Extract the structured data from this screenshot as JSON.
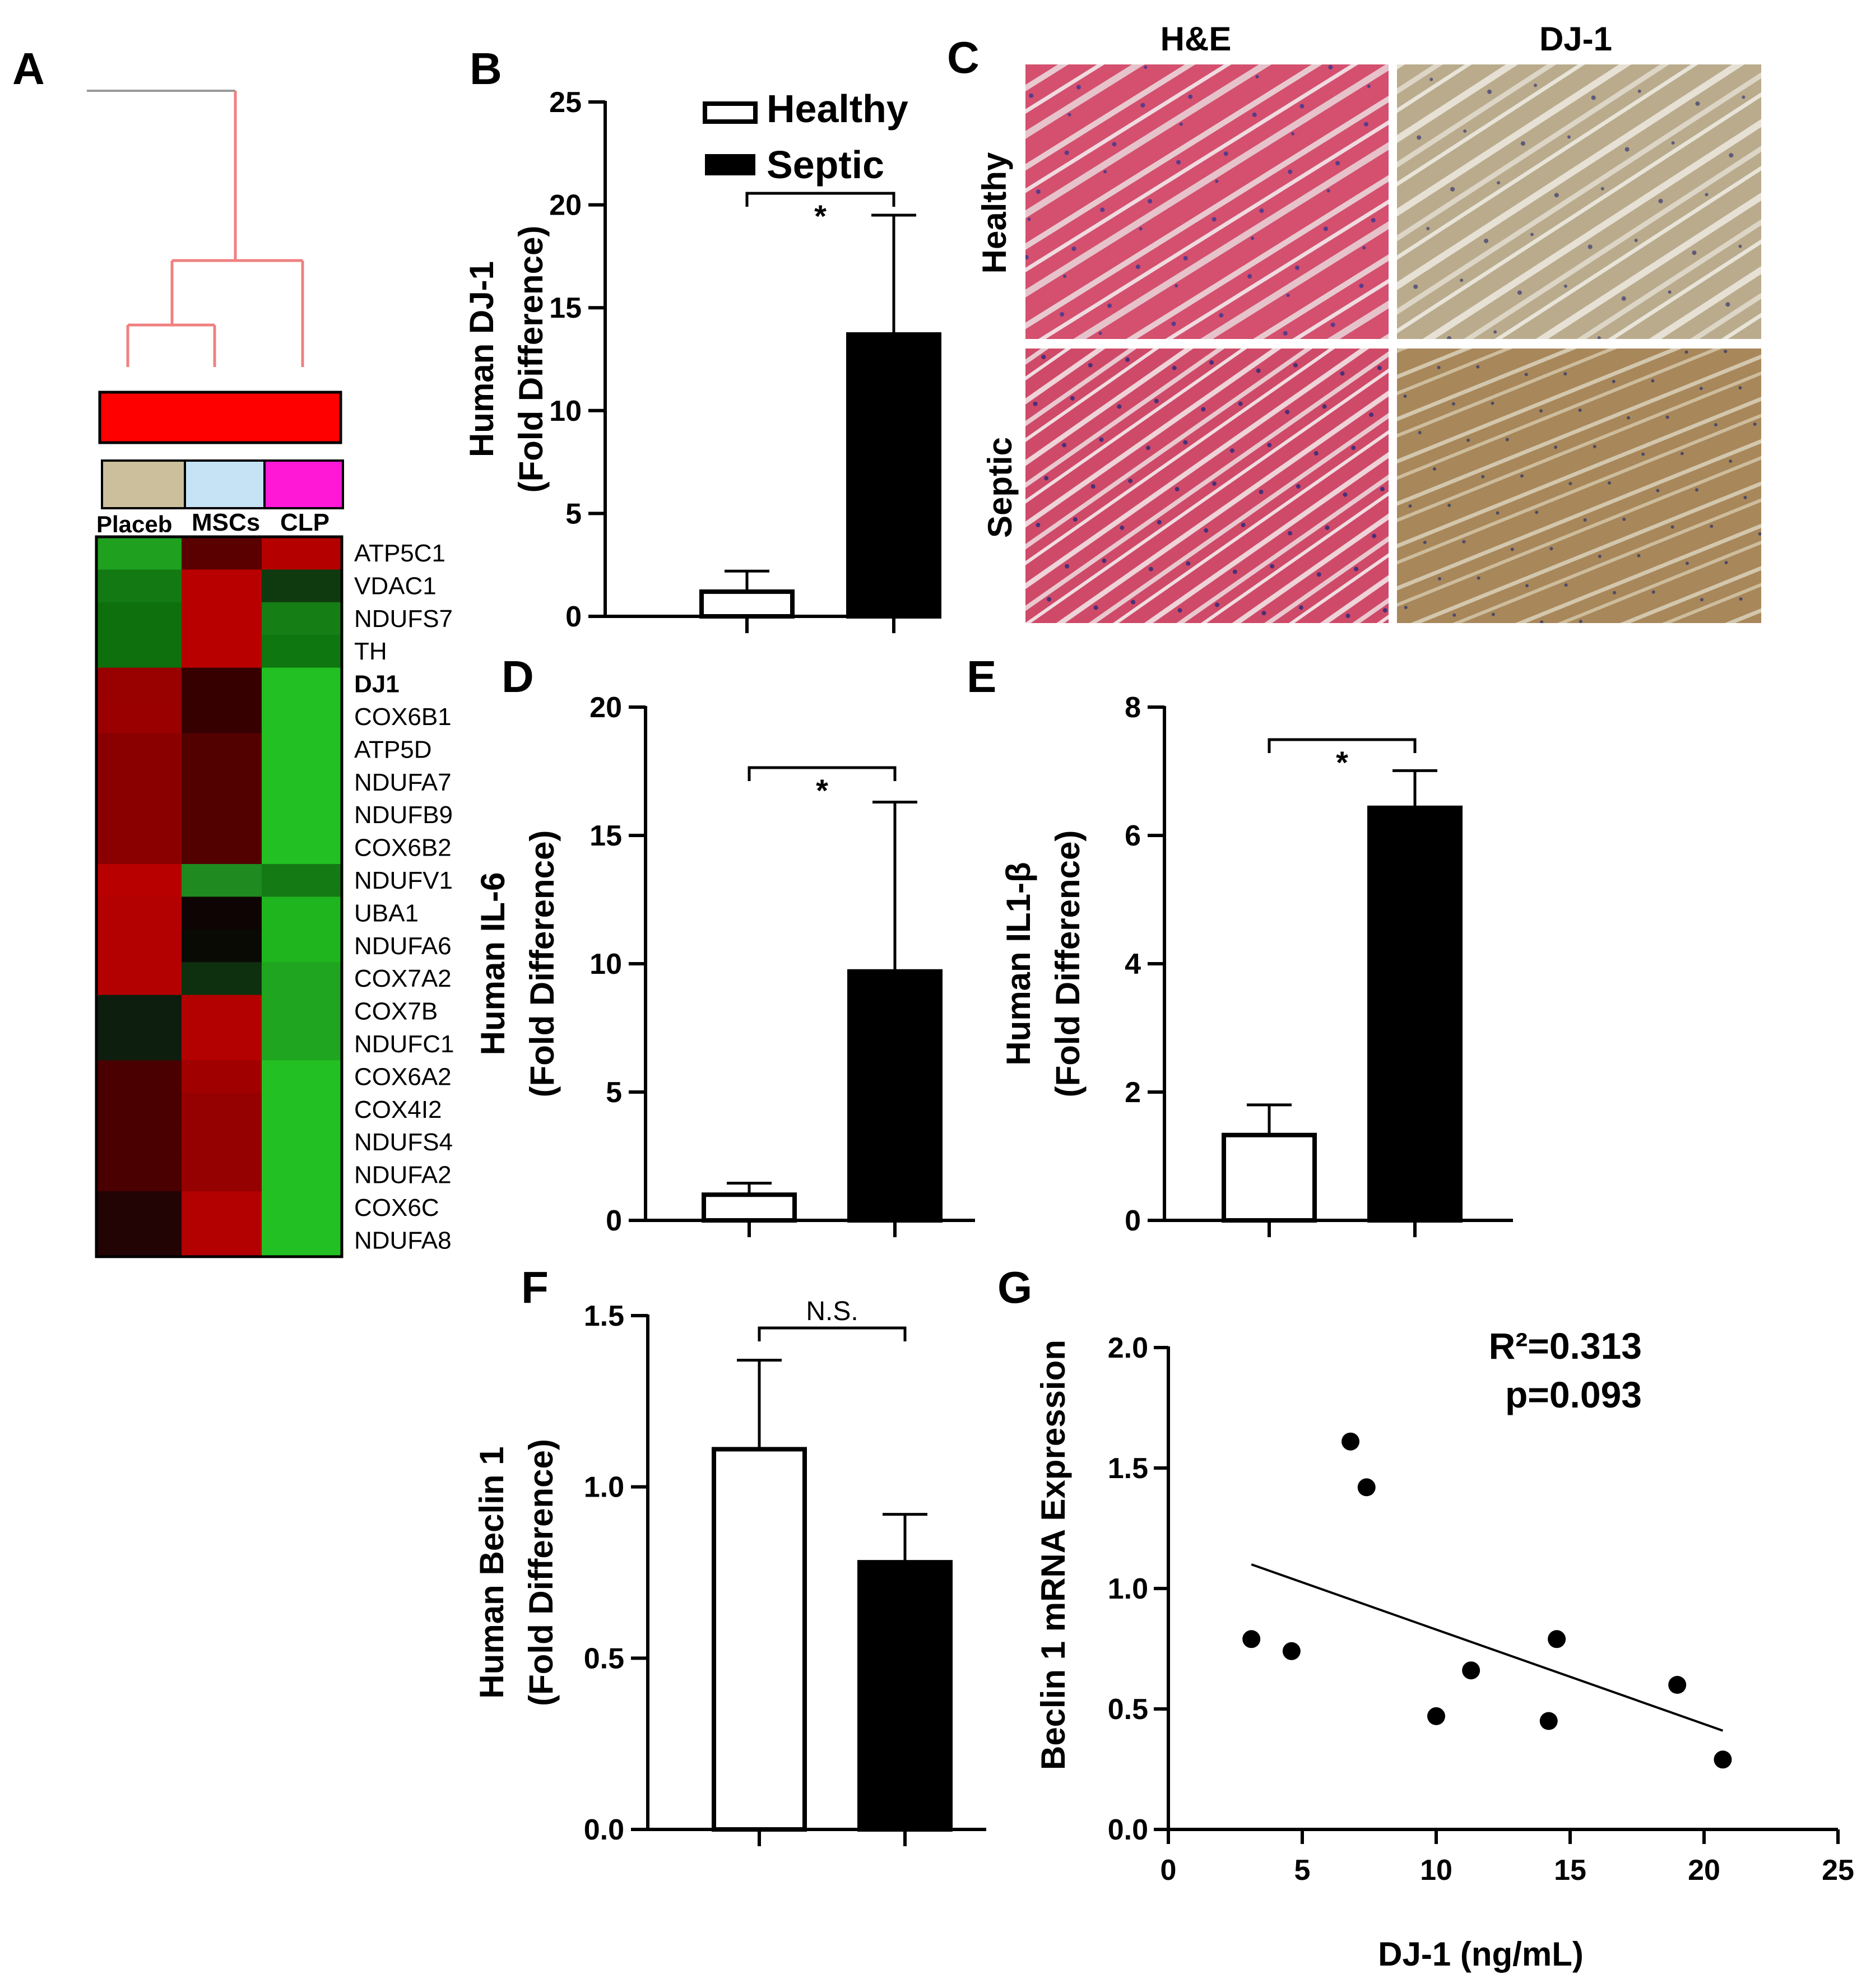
{
  "panel_labels": {
    "A": "A",
    "B": "B",
    "C": "C",
    "D": "D",
    "E": "E",
    "F": "F",
    "G": "G"
  },
  "legend": {
    "healthy": "Healthy",
    "septic": "Septic"
  },
  "colors": {
    "healthy": "#ffffff",
    "septic": "#000000",
    "dendrogram": "#f08080",
    "cluster_bar": "#ff0000",
    "placebo": "#cbbf9c",
    "mscs": "#c5e3f5",
    "clp": "#ff19d7"
  },
  "heatmap": {
    "columns": [
      "Placeb",
      "MSCs",
      "CLP"
    ],
    "genes": [
      "ATP5C1",
      "VDAC1",
      "NDUFS7",
      "TH",
      "DJ1",
      "COX6B1",
      "ATP5D",
      "NDUFA7",
      "NDUFB9",
      "COX6B2",
      "NDUFV1",
      "UBA1",
      "NDUFA6",
      "COX7A2",
      "COX7B",
      "NDUFC1",
      "COX6A2",
      "COX4I2",
      "NDUFS4",
      "NDUFA2",
      "COX6C",
      "NDUFA8"
    ],
    "bold_gene": "DJ1",
    "cells": [
      [
        "#1fa11f",
        "#5a0000",
        "#b50000"
      ],
      [
        "#137a13",
        "#b80000",
        "#0f3a0f"
      ],
      [
        "#0d700d",
        "#b80000",
        "#157f15"
      ],
      [
        "#0d700d",
        "#b80000",
        "#0f770f"
      ],
      [
        "#990000",
        "#360000",
        "#23c023"
      ],
      [
        "#9a0000",
        "#360000",
        "#23c023"
      ],
      [
        "#8a0000",
        "#520000",
        "#23c023"
      ],
      [
        "#8a0000",
        "#520000",
        "#23c023"
      ],
      [
        "#8a0000",
        "#520000",
        "#23c023"
      ],
      [
        "#8a0000",
        "#520000",
        "#23c023"
      ],
      [
        "#b80000",
        "#1f8a1f",
        "#147a14"
      ],
      [
        "#b30000",
        "#0f0404",
        "#1fb51f"
      ],
      [
        "#b30000",
        "#0a0a04",
        "#1fb51f"
      ],
      [
        "#b30000",
        "#0f300f",
        "#1fa51f"
      ],
      [
        "#0e1e0e",
        "#b30000",
        "#1fa51f"
      ],
      [
        "#0e1e0e",
        "#b30000",
        "#1fa51f"
      ],
      [
        "#4a0000",
        "#a00000",
        "#23c023"
      ],
      [
        "#4a0000",
        "#950000",
        "#23c023"
      ],
      [
        "#4a0000",
        "#950000",
        "#23c023"
      ],
      [
        "#4a0000",
        "#950000",
        "#23c023"
      ],
      [
        "#230404",
        "#b30000",
        "#23c023"
      ],
      [
        "#230404",
        "#b30000",
        "#23c023"
      ]
    ]
  },
  "histology": {
    "columns": [
      "H&E",
      "DJ-1"
    ],
    "rows": [
      "Healthy",
      "Septic"
    ]
  },
  "chart_data": [
    {
      "panel": "B",
      "type": "bar",
      "ylabel_line1": "Human DJ-1",
      "ylabel_line2": "(Fold Difference)",
      "ylim": [
        0,
        25
      ],
      "yticks": [
        0,
        5,
        10,
        15,
        20,
        25
      ],
      "series": [
        {
          "name": "Healthy",
          "value": 1.2,
          "error": 1.0
        },
        {
          "name": "Septic",
          "value": 13.7,
          "error": 5.8
        }
      ],
      "significance": "*"
    },
    {
      "panel": "D",
      "type": "bar",
      "ylabel_line1": "Human IL-6",
      "ylabel_line2": "(Fold Difference)",
      "ylim": [
        0,
        20
      ],
      "yticks": [
        0,
        5,
        10,
        15,
        20
      ],
      "series": [
        {
          "name": "Healthy",
          "value": 1.0,
          "error": 0.45
        },
        {
          "name": "Septic",
          "value": 9.7,
          "error": 6.6
        }
      ],
      "significance": "*"
    },
    {
      "panel": "E",
      "type": "bar",
      "ylabel_line1": "Human IL1-β",
      "ylabel_line2": "(Fold Difference)",
      "ylim": [
        0,
        8
      ],
      "yticks": [
        0,
        2,
        4,
        6,
        8
      ],
      "series": [
        {
          "name": "Healthy",
          "value": 1.33,
          "error": 0.47
        },
        {
          "name": "Septic",
          "value": 6.43,
          "error": 0.58
        }
      ],
      "significance": "*"
    },
    {
      "panel": "F",
      "type": "bar",
      "ylabel_line1": "Human Beclin 1",
      "ylabel_line2": "(Fold Difference)",
      "ylim": [
        0,
        1.5
      ],
      "yticks": [
        "0.0",
        "0.5",
        "1.0",
        "1.5"
      ],
      "series": [
        {
          "name": "Healthy",
          "value": 1.11,
          "error": 0.26
        },
        {
          "name": "Septic",
          "value": 0.78,
          "error": 0.14
        }
      ],
      "significance": "N.S."
    },
    {
      "panel": "G",
      "type": "scatter",
      "xlabel": "DJ-1 (ng/mL)",
      "ylabel": "Beclin 1 mRNA Expression",
      "xlim": [
        0,
        25
      ],
      "ylim": [
        0,
        2.0
      ],
      "xticks": [
        "0",
        "5",
        "10",
        "15",
        "20",
        "25"
      ],
      "yticks": [
        "0.0",
        "0.5",
        "1.0",
        "1.5",
        "2.0"
      ],
      "points": [
        [
          3.1,
          0.79
        ],
        [
          4.6,
          0.74
        ],
        [
          6.8,
          1.61
        ],
        [
          7.4,
          1.42
        ],
        [
          10.0,
          0.47
        ],
        [
          11.3,
          0.66
        ],
        [
          14.2,
          0.45
        ],
        [
          14.5,
          0.79
        ],
        [
          19.0,
          0.6
        ],
        [
          20.7,
          0.29
        ]
      ],
      "fit": [
        [
          3.1,
          1.1
        ],
        [
          20.7,
          0.41
        ]
      ],
      "annotation_r2": "R²=0.313",
      "annotation_p": "p=0.093"
    }
  ]
}
